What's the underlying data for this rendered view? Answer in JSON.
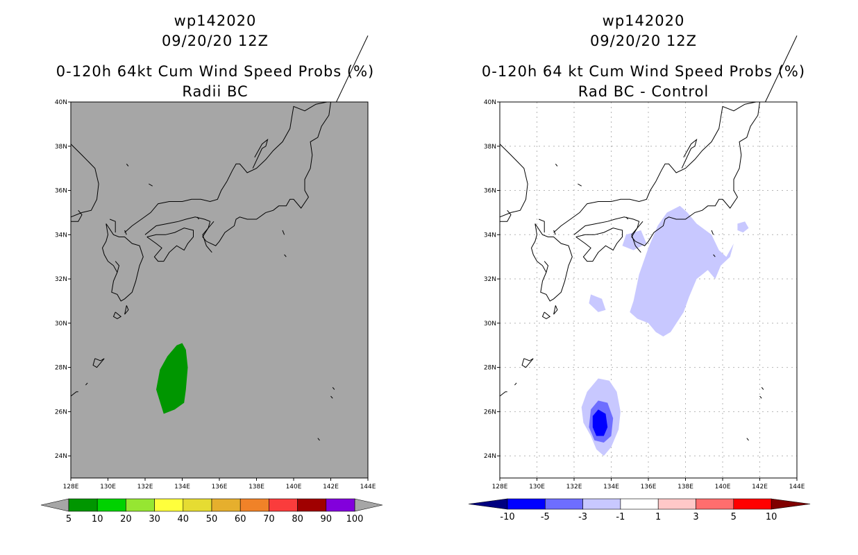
{
  "panels": [
    {
      "title_lines": [
        "wp142020",
        "09/20/20 12Z",
        "0-120h 64kt Cum Wind Speed Probs (%)",
        "Radii BC"
      ],
      "background": "#a6a6a6",
      "grid": false
    },
    {
      "title_lines": [
        "wp142020",
        "09/20/20 12Z",
        "0-120h 64 kt Cum Wind Speed Probs (%)",
        "Rad BC - Control"
      ],
      "background": "#ffffff",
      "grid": true
    }
  ],
  "axes": {
    "lon_ticks": [
      "128E",
      "130E",
      "132E",
      "134E",
      "136E",
      "138E",
      "140E",
      "142E",
      "144E"
    ],
    "lat_ticks": [
      "24N",
      "26N",
      "28N",
      "30N",
      "32N",
      "34N",
      "36N",
      "38N",
      "40N"
    ],
    "lon_range": [
      128,
      144
    ],
    "lat_range": [
      23,
      40
    ]
  },
  "colorbars": {
    "left": {
      "labels": [
        "5",
        "10",
        "20",
        "30",
        "40",
        "50",
        "60",
        "70",
        "80",
        "90",
        "100"
      ],
      "colors": [
        "#009600",
        "#00d200",
        "#96e632",
        "#ffff3c",
        "#e6dc32",
        "#e6af2d",
        "#f08228",
        "#fa3c3c",
        "#a00000",
        "#8200dc"
      ],
      "end_color": "#a6a6a6"
    },
    "right": {
      "labels": [
        "-10",
        "-5",
        "-3",
        "-1",
        "1",
        "3",
        "5",
        "10"
      ],
      "colors": [
        "#0000ff",
        "#6e6eff",
        "#c8c8ff",
        "#ffffff",
        "#ffc8c8",
        "#ff6e6e",
        "#ff0000"
      ],
      "low_end_color": "#000080",
      "high_end_color": "#800000"
    }
  },
  "chart_data": [
    {
      "type": "contour-map",
      "title": "0-120h 64kt Cum Wind Speed Probs (%) Radii BC",
      "storm": "wp142020",
      "time": "09/20/20 12Z",
      "fields": [
        {
          "level": "5-10",
          "color": "#009600",
          "polygon": [
            [
              134.0,
              29.1
            ],
            [
              134.2,
              28.8
            ],
            [
              134.3,
              28.0
            ],
            [
              134.2,
              27.0
            ],
            [
              134.1,
              26.4
            ],
            [
              133.6,
              26.1
            ],
            [
              133.0,
              25.9
            ],
            [
              132.6,
              27.0
            ],
            [
              132.8,
              27.9
            ],
            [
              133.2,
              28.5
            ],
            [
              133.7,
              29.0
            ]
          ]
        }
      ]
    },
    {
      "type": "contour-map",
      "title": "0-120h 64 kt Cum Wind Speed Probs (%) Rad BC - Control",
      "storm": "wp142020",
      "time": "09/20/20 12Z",
      "fields": [
        {
          "level": "-3 to -1",
          "color": "#c8c8ff",
          "polygon": [
            [
              135.2,
              31.0
            ],
            [
              135.5,
              32.2
            ],
            [
              136.0,
              33.4
            ],
            [
              136.5,
              34.4
            ],
            [
              137.0,
              35.0
            ],
            [
              137.7,
              35.3
            ],
            [
              138.1,
              35.0
            ],
            [
              138.6,
              34.5
            ],
            [
              139.4,
              34.0
            ],
            [
              139.8,
              33.3
            ],
            [
              140.2,
              33.0
            ],
            [
              140.4,
              33.3
            ],
            [
              140.6,
              33.6
            ],
            [
              140.4,
              33.0
            ],
            [
              139.9,
              32.6
            ],
            [
              139.6,
              32.0
            ],
            [
              139.2,
              32.4
            ],
            [
              138.6,
              32.0
            ],
            [
              138.2,
              31.2
            ],
            [
              137.9,
              30.5
            ],
            [
              137.2,
              29.6
            ],
            [
              136.8,
              29.4
            ],
            [
              136.4,
              29.6
            ],
            [
              136.0,
              30.0
            ],
            [
              135.4,
              30.2
            ],
            [
              135.0,
              30.5
            ]
          ]
        },
        {
          "level": "-3 to -1",
          "color": "#c8c8ff",
          "polygon": [
            [
              132.9,
              31.3
            ],
            [
              133.5,
              31.1
            ],
            [
              133.7,
              30.6
            ],
            [
              133.3,
              30.5
            ],
            [
              132.8,
              30.9
            ]
          ]
        },
        {
          "level": "-3 to -1",
          "color": "#c8c8ff",
          "polygon": [
            [
              134.8,
              34.0
            ],
            [
              135.6,
              34.2
            ],
            [
              135.9,
              33.6
            ],
            [
              135.2,
              33.3
            ],
            [
              134.6,
              33.5
            ]
          ]
        },
        {
          "level": "-3 to -1",
          "color": "#c8c8ff",
          "polygon": [
            [
              140.8,
              34.5
            ],
            [
              141.2,
              34.6
            ],
            [
              141.4,
              34.3
            ],
            [
              141.1,
              34.1
            ],
            [
              140.8,
              34.2
            ]
          ]
        },
        {
          "level": "-3 to -1",
          "color": "#c8c8ff",
          "polygon": [
            [
              133.3,
              27.5
            ],
            [
              133.9,
              27.4
            ],
            [
              134.3,
              26.9
            ],
            [
              134.5,
              26.0
            ],
            [
              134.4,
              25.2
            ],
            [
              134.0,
              24.4
            ],
            [
              133.6,
              24.0
            ],
            [
              133.2,
              24.3
            ],
            [
              132.9,
              24.9
            ],
            [
              132.5,
              25.5
            ],
            [
              132.4,
              26.2
            ],
            [
              132.7,
              26.9
            ]
          ]
        },
        {
          "level": "-5 to -3",
          "color": "#6e6eff",
          "polygon": [
            [
              133.3,
              26.5
            ],
            [
              133.8,
              26.4
            ],
            [
              134.1,
              25.7
            ],
            [
              134.0,
              24.9
            ],
            [
              133.6,
              24.6
            ],
            [
              133.1,
              24.7
            ],
            [
              132.8,
              25.3
            ],
            [
              132.9,
              26.1
            ]
          ]
        },
        {
          "level": "-10 to -5",
          "color": "#0000ff",
          "polygon": [
            [
              133.3,
              26.1
            ],
            [
              133.7,
              25.9
            ],
            [
              133.8,
              25.3
            ],
            [
              133.6,
              24.9
            ],
            [
              133.2,
              24.9
            ],
            [
              133.0,
              25.3
            ],
            [
              133.0,
              25.8
            ]
          ]
        }
      ]
    }
  ]
}
